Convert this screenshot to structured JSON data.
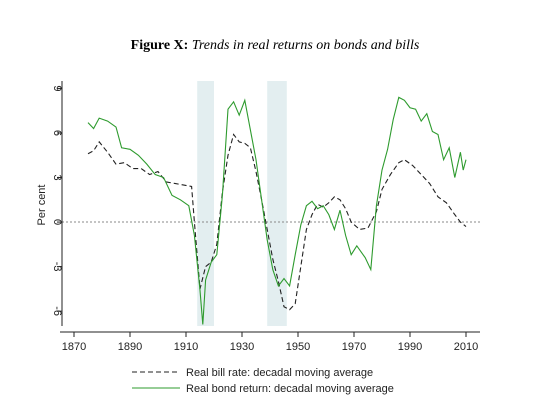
{
  "chart_data": {
    "type": "line",
    "title_label": "Figure X:",
    "title": "Trends in real returns on bonds and bills",
    "ylabel": "Per cent",
    "xlim": [
      1865,
      2015
    ],
    "xticks": [
      1870,
      1890,
      1910,
      1930,
      1950,
      1970,
      1990,
      2010
    ],
    "ylim": [
      -7,
      9.5
    ],
    "yticks": [
      -6,
      -3,
      0,
      3,
      6,
      9
    ],
    "reference_line": 0,
    "shaded_x_ranges": [
      [
        1914,
        1920
      ],
      [
        1939,
        1946
      ]
    ],
    "shade_color": "#e3eef0",
    "legend": "bottom",
    "series": [
      {
        "name": "Real bill rate: decadal moving average",
        "color": "#222222",
        "dash": true,
        "x": [
          1875,
          1877,
          1879,
          1882,
          1885,
          1888,
          1891,
          1894,
          1897,
          1900,
          1903,
          1906,
          1909,
          1912,
          1913,
          1915,
          1917,
          1919,
          1921,
          1923,
          1925,
          1927,
          1929,
          1931,
          1933,
          1935,
          1937,
          1939,
          1941,
          1943,
          1945,
          1947,
          1949,
          1951,
          1953,
          1955,
          1957,
          1959,
          1961,
          1963,
          1965,
          1967,
          1969,
          1972,
          1975,
          1978,
          1980,
          1983,
          1986,
          1988,
          1991,
          1994,
          1997,
          2000,
          2003,
          2006,
          2008,
          2010
        ],
        "values": [
          4.6,
          4.8,
          5.4,
          4.7,
          3.9,
          4.0,
          3.6,
          3.6,
          3.2,
          3.4,
          2.7,
          2.6,
          2.5,
          2.4,
          0.0,
          -4.5,
          -3.0,
          -2.7,
          -1.5,
          2.0,
          4.5,
          5.9,
          5.4,
          5.3,
          5.0,
          3.4,
          1.5,
          -0.5,
          -2.5,
          -4.0,
          -5.7,
          -5.9,
          -5.5,
          -3.0,
          -0.5,
          0.5,
          1.2,
          1.0,
          1.3,
          1.7,
          1.5,
          0.9,
          0.0,
          -0.5,
          -0.4,
          0.7,
          2.2,
          3.2,
          4.0,
          4.2,
          3.8,
          3.2,
          2.6,
          1.7,
          1.3,
          0.5,
          0.0,
          -0.3
        ]
      },
      {
        "name": "Real bond return: decadal moving average",
        "color": "#2e9b2e",
        "dash": false,
        "x": [
          1875,
          1877,
          1879,
          1882,
          1885,
          1887,
          1890,
          1893,
          1896,
          1899,
          1902,
          1905,
          1908,
          1911,
          1913,
          1915,
          1916,
          1917,
          1919,
          1921,
          1923,
          1925,
          1927,
          1929,
          1931,
          1933,
          1935,
          1937,
          1939,
          1941,
          1943,
          1945,
          1947,
          1949,
          1951,
          1953,
          1955,
          1957,
          1959,
          1961,
          1963,
          1965,
          1967,
          1969,
          1971,
          1974,
          1976,
          1978,
          1980,
          1982,
          1984,
          1986,
          1988,
          1990,
          1992,
          1994,
          1996,
          1998,
          2000,
          2002,
          2004,
          2006,
          2008,
          2009,
          2010
        ],
        "values": [
          6.7,
          6.3,
          7.0,
          6.8,
          6.4,
          5.0,
          4.9,
          4.5,
          3.9,
          3.2,
          3.0,
          1.8,
          1.5,
          1.1,
          -0.9,
          -4.6,
          -6.9,
          -3.9,
          -2.7,
          -2.2,
          1.8,
          7.6,
          8.1,
          7.2,
          8.2,
          6.2,
          4.2,
          1.5,
          -1.2,
          -3.2,
          -4.3,
          -3.8,
          -4.3,
          -2.2,
          -0.2,
          1.1,
          1.4,
          0.9,
          1.1,
          0.5,
          -0.5,
          0.8,
          -0.9,
          -2.2,
          -1.6,
          -2.4,
          -3.2,
          1.1,
          3.5,
          4.9,
          6.9,
          8.4,
          8.2,
          7.7,
          7.6,
          6.8,
          7.3,
          6.1,
          5.9,
          4.2,
          5.0,
          3.0,
          4.7,
          3.5,
          4.2
        ]
      }
    ]
  }
}
